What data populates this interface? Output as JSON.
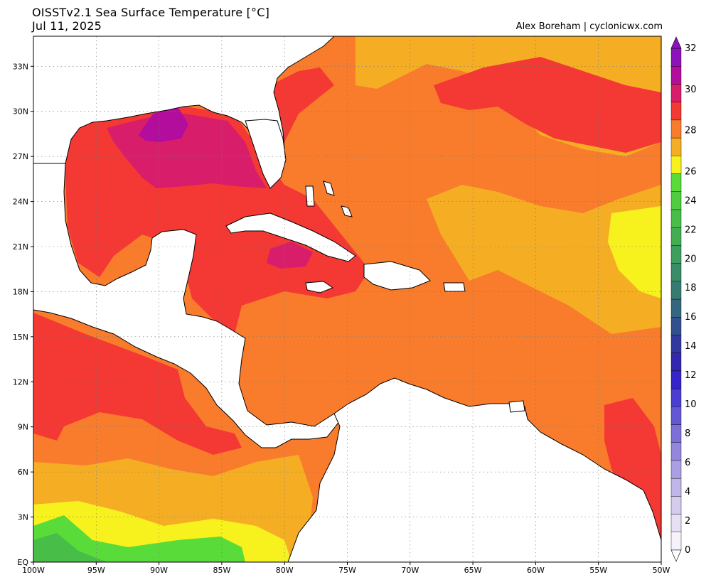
{
  "header": {
    "title_line1": "OISSTv2.1 Sea Surface Temperature [°C]",
    "title_line2": "Jul 11, 2025",
    "credit": "Alex Boreham | cyclonicwx.com"
  },
  "map": {
    "lon_labels": [
      "100W",
      "95W",
      "90W",
      "85W",
      "80W",
      "75W",
      "70W",
      "65W",
      "60W",
      "55W",
      "50W"
    ],
    "lat_labels": [
      "EQ",
      "3N",
      "6N",
      "9N",
      "12N",
      "15N",
      "18N",
      "21N",
      "24N",
      "27N",
      "30N",
      "33N"
    ],
    "extent": {
      "lon_min": -100,
      "lon_max": -50,
      "lat_min": 0,
      "lat_max": 35
    }
  },
  "colorbar": {
    "unit": "°C",
    "tick_labels": [
      "0",
      "2",
      "4",
      "6",
      "8",
      "10",
      "12",
      "14",
      "16",
      "18",
      "20",
      "22",
      "24",
      "26",
      "28",
      "30",
      "32"
    ],
    "colors": [
      "#f6f2fb",
      "#e7e0f4",
      "#d4cbee",
      "#c0b6e8",
      "#aa9fe3",
      "#9387dd",
      "#7c70d8",
      "#6457d4",
      "#4a3fd1",
      "#3524c9",
      "#3327b0",
      "#32399e",
      "#32508f",
      "#34677f",
      "#367b72",
      "#3a8d66",
      "#3e9e5d",
      "#43ad53",
      "#48bd48",
      "#4fcc3f",
      "#59dc3a",
      "#f7f21e",
      "#f5ae24",
      "#f87c2c",
      "#f43834",
      "#d81e6b",
      "#b20d9d",
      "#8e12bb"
    ]
  },
  "sst_colors": {
    "ocean_26": "#f7f21e",
    "ocean_27": "#f5ae24",
    "ocean_28": "#f87c2c",
    "ocean_29": "#f43834",
    "ocean_30": "#d81e6b",
    "ocean_31": "#b20d9d",
    "cool_24": "#59dc3a",
    "cool_23": "#48bd48",
    "land": "#ffffff"
  }
}
